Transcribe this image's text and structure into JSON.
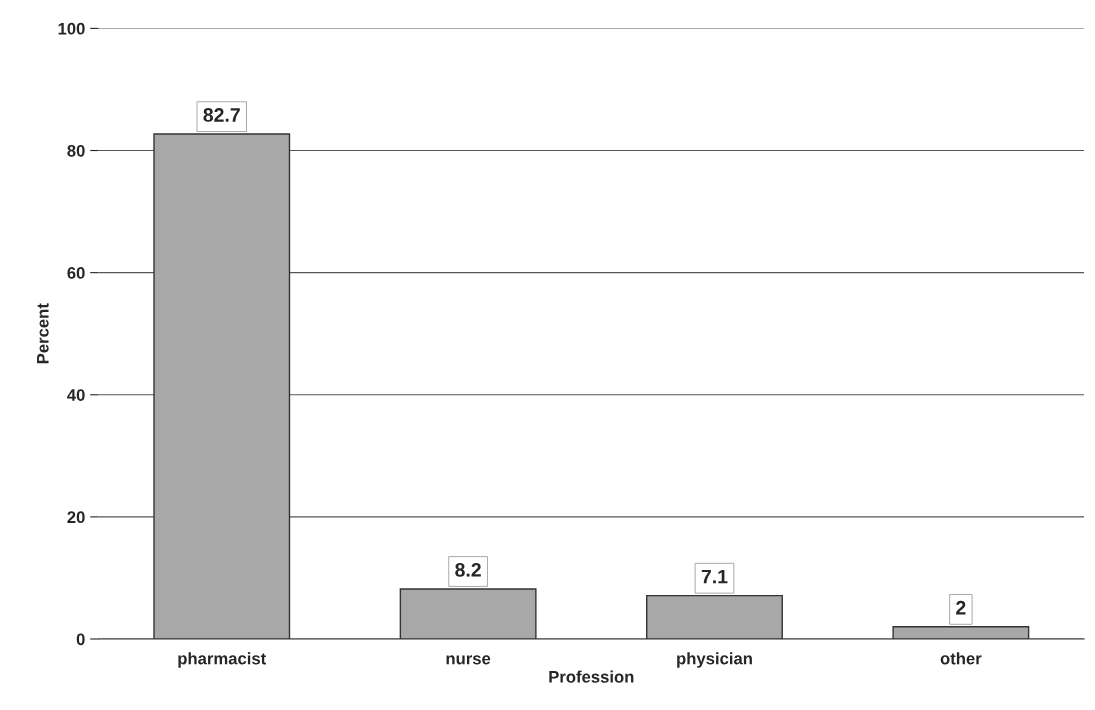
{
  "chart_data": {
    "type": "bar",
    "xlabel": "Profession",
    "ylabel": "Percent",
    "categories": [
      "pharmacist",
      "nurse",
      "physician",
      "other"
    ],
    "values": [
      82.7,
      8.2,
      7.1,
      2
    ],
    "color": "#a8a8a8",
    "ylim": [
      0,
      100
    ],
    "yticks": [
      0,
      20,
      40,
      60,
      80,
      100
    ],
    "grid": "y",
    "data_labels": true
  }
}
